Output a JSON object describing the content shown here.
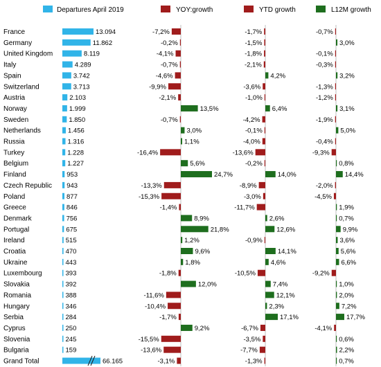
{
  "chart_data": {
    "type": "bar",
    "legend": [
      {
        "label": "Departures April 2019",
        "color": "#31b4e8"
      },
      {
        "label": "YOY:growth",
        "color": "#a01c1c"
      },
      {
        "label": "YTD growth",
        "color": "#a01c1c"
      },
      {
        "label": "L12M growth",
        "color": "#1e6e1e"
      }
    ],
    "colors": {
      "departures": "#31b4e8",
      "positive": "#1e6e1e",
      "negative": "#a01c1c"
    },
    "rows": [
      {
        "country": "France",
        "departures": 13094,
        "departures_label": "13.094",
        "yoy": -7.2,
        "yoy_label": "-7,2%",
        "ytd": -1.7,
        "ytd_label": "-1,7%",
        "l12m": -0.7,
        "l12m_label": "-0,7%"
      },
      {
        "country": "Germany",
        "departures": 11862,
        "departures_label": "11.862",
        "yoy": -0.2,
        "yoy_label": "-0,2%",
        "ytd": -1.5,
        "ytd_label": "-1,5%",
        "l12m": 3.0,
        "l12m_label": "3,0%"
      },
      {
        "country": "United Kingdom",
        "departures": 8119,
        "departures_label": "8.119",
        "yoy": -4.1,
        "yoy_label": "-4,1%",
        "ytd": -1.8,
        "ytd_label": "-1,8%",
        "l12m": -0.1,
        "l12m_label": "-0,1%"
      },
      {
        "country": "Italy",
        "departures": 4289,
        "departures_label": "4.289",
        "yoy": -0.7,
        "yoy_label": "-0,7%",
        "ytd": -2.1,
        "ytd_label": "-2,1%",
        "l12m": -0.3,
        "l12m_label": "-0,3%"
      },
      {
        "country": "Spain",
        "departures": 3742,
        "departures_label": "3.742",
        "yoy": -4.6,
        "yoy_label": "-4,6%",
        "ytd": 4.2,
        "ytd_label": "4,2%",
        "l12m": 3.2,
        "l12m_label": "3,2%"
      },
      {
        "country": "Switzerland",
        "departures": 3713,
        "departures_label": "3.713",
        "yoy": -9.9,
        "yoy_label": "-9,9%",
        "ytd": -3.6,
        "ytd_label": "-3,6%",
        "l12m": -1.3,
        "l12m_label": "-1,3%"
      },
      {
        "country": "Austria",
        "departures": 2103,
        "departures_label": "2.103",
        "yoy": -2.1,
        "yoy_label": "-2,1%",
        "ytd": -1.0,
        "ytd_label": "-1,0%",
        "l12m": -1.2,
        "l12m_label": "-1,2%"
      },
      {
        "country": "Norway",
        "departures": 1999,
        "departures_label": "1.999",
        "yoy": 13.5,
        "yoy_label": "13,5%",
        "ytd": 6.4,
        "ytd_label": "6,4%",
        "l12m": 3.1,
        "l12m_label": "3,1%"
      },
      {
        "country": "Sweden",
        "departures": 1850,
        "departures_label": "1.850",
        "yoy": -0.7,
        "yoy_label": "-0,7%",
        "ytd": -4.2,
        "ytd_label": "-4,2%",
        "l12m": -1.9,
        "l12m_label": "-1,9%"
      },
      {
        "country": "Netherlands",
        "departures": 1456,
        "departures_label": "1.456",
        "yoy": 3.0,
        "yoy_label": "3,0%",
        "ytd": -0.1,
        "ytd_label": "-0,1%",
        "l12m": 5.0,
        "l12m_label": "5,0%"
      },
      {
        "country": "Russia",
        "departures": 1316,
        "departures_label": "1.316",
        "yoy": 1.1,
        "yoy_label": "1,1%",
        "ytd": -4.0,
        "ytd_label": "-4,0%",
        "l12m": -0.4,
        "l12m_label": "-0,4%"
      },
      {
        "country": "Turkey",
        "departures": 1228,
        "departures_label": "1.228",
        "yoy": -16.4,
        "yoy_label": "-16,4%",
        "ytd": -13.6,
        "ytd_label": "-13,6%",
        "l12m": -9.3,
        "l12m_label": "-9,3%"
      },
      {
        "country": "Belgium",
        "departures": 1227,
        "departures_label": "1.227",
        "yoy": 5.6,
        "yoy_label": "5,6%",
        "ytd": -0.2,
        "ytd_label": "-0,2%",
        "l12m": 0.8,
        "l12m_label": "0,8%"
      },
      {
        "country": "Finland",
        "departures": 953,
        "departures_label": "953",
        "yoy": 24.7,
        "yoy_label": "24,7%",
        "ytd": 14.0,
        "ytd_label": "14,0%",
        "l12m": 14.4,
        "l12m_label": "14,4%"
      },
      {
        "country": "Czech Republic",
        "departures": 943,
        "departures_label": "943",
        "yoy": -13.3,
        "yoy_label": "-13,3%",
        "ytd": -8.9,
        "ytd_label": "-8,9%",
        "l12m": -2.0,
        "l12m_label": "-2,0%"
      },
      {
        "country": "Poland",
        "departures": 877,
        "departures_label": "877",
        "yoy": -15.3,
        "yoy_label": "-15,3%",
        "ytd": -3.0,
        "ytd_label": "-3,0%",
        "l12m": -4.5,
        "l12m_label": "-4,5%"
      },
      {
        "country": "Greece",
        "departures": 846,
        "departures_label": "846",
        "yoy": -1.4,
        "yoy_label": "-1,4%",
        "ytd": -11.7,
        "ytd_label": "-11,7%",
        "l12m": 1.9,
        "l12m_label": "1,9%"
      },
      {
        "country": "Denmark",
        "departures": 756,
        "departures_label": "756",
        "yoy": 8.9,
        "yoy_label": "8,9%",
        "ytd": 2.6,
        "ytd_label": "2,6%",
        "l12m": 0.7,
        "l12m_label": "0,7%"
      },
      {
        "country": "Portugal",
        "departures": 675,
        "departures_label": "675",
        "yoy": 21.8,
        "yoy_label": "21,8%",
        "ytd": 12.6,
        "ytd_label": "12,6%",
        "l12m": 9.9,
        "l12m_label": "9,9%"
      },
      {
        "country": "Ireland",
        "departures": 515,
        "departures_label": "515",
        "yoy": 1.2,
        "yoy_label": "1,2%",
        "ytd": -0.9,
        "ytd_label": "-0,9%",
        "l12m": 3.6,
        "l12m_label": "3,6%"
      },
      {
        "country": "Croatia",
        "departures": 470,
        "departures_label": "470",
        "yoy": 9.6,
        "yoy_label": "9,6%",
        "ytd": 14.1,
        "ytd_label": "14,1%",
        "l12m": 5.6,
        "l12m_label": "5,6%"
      },
      {
        "country": "Ukraine",
        "departures": 443,
        "departures_label": "443",
        "yoy": 1.8,
        "yoy_label": "1,8%",
        "ytd": 4.6,
        "ytd_label": "4,6%",
        "l12m": 6.6,
        "l12m_label": "6,6%"
      },
      {
        "country": "Luxembourg",
        "departures": 393,
        "departures_label": "393",
        "yoy": -1.8,
        "yoy_label": "-1,8%",
        "ytd": -10.5,
        "ytd_label": "-10,5%",
        "l12m": -9.2,
        "l12m_label": "-9,2%"
      },
      {
        "country": "Slovakia",
        "departures": 392,
        "departures_label": "392",
        "yoy": 12.0,
        "yoy_label": "12,0%",
        "ytd": 7.4,
        "ytd_label": "7,4%",
        "l12m": 1.0,
        "l12m_label": "1,0%"
      },
      {
        "country": "Romania",
        "departures": 388,
        "departures_label": "388",
        "yoy": -11.6,
        "yoy_label": "-11,6%",
        "ytd": 12.1,
        "ytd_label": "12,1%",
        "l12m": 2.0,
        "l12m_label": "2,0%"
      },
      {
        "country": "Hungary",
        "departures": 346,
        "departures_label": "346",
        "yoy": -10.4,
        "yoy_label": "-10,4%",
        "ytd": 2.3,
        "ytd_label": "2,3%",
        "l12m": 7.2,
        "l12m_label": "7,2%"
      },
      {
        "country": "Serbia",
        "departures": 284,
        "departures_label": "284",
        "yoy": -1.7,
        "yoy_label": "-1,7%",
        "ytd": 17.1,
        "ytd_label": "17,1%",
        "l12m": 17.7,
        "l12m_label": "17,7%"
      },
      {
        "country": "Cyprus",
        "departures": 250,
        "departures_label": "250",
        "yoy": 9.2,
        "yoy_label": "9,2%",
        "ytd": -6.7,
        "ytd_label": "-6,7%",
        "l12m": -4.1,
        "l12m_label": "-4,1%"
      },
      {
        "country": "Slovenia",
        "departures": 245,
        "departures_label": "245",
        "yoy": -15.5,
        "yoy_label": "-15,5%",
        "ytd": -3.5,
        "ytd_label": "-3,5%",
        "l12m": 0.6,
        "l12m_label": "0,6%"
      },
      {
        "country": "Bulgaria",
        "departures": 159,
        "departures_label": "159",
        "yoy": -13.6,
        "yoy_label": "-13,6%",
        "ytd": -7.7,
        "ytd_label": "-7,7%",
        "l12m": 2.2,
        "l12m_label": "2,2%"
      },
      {
        "country": "Grand Total",
        "departures": 66165,
        "departures_label": "66.165",
        "yoy": -3.1,
        "yoy_label": "-3,1%",
        "ytd": -1.3,
        "ytd_label": "-1,3%",
        "l12m": 0.7,
        "l12m_label": "0,7%",
        "axis_break": true
      }
    ]
  }
}
